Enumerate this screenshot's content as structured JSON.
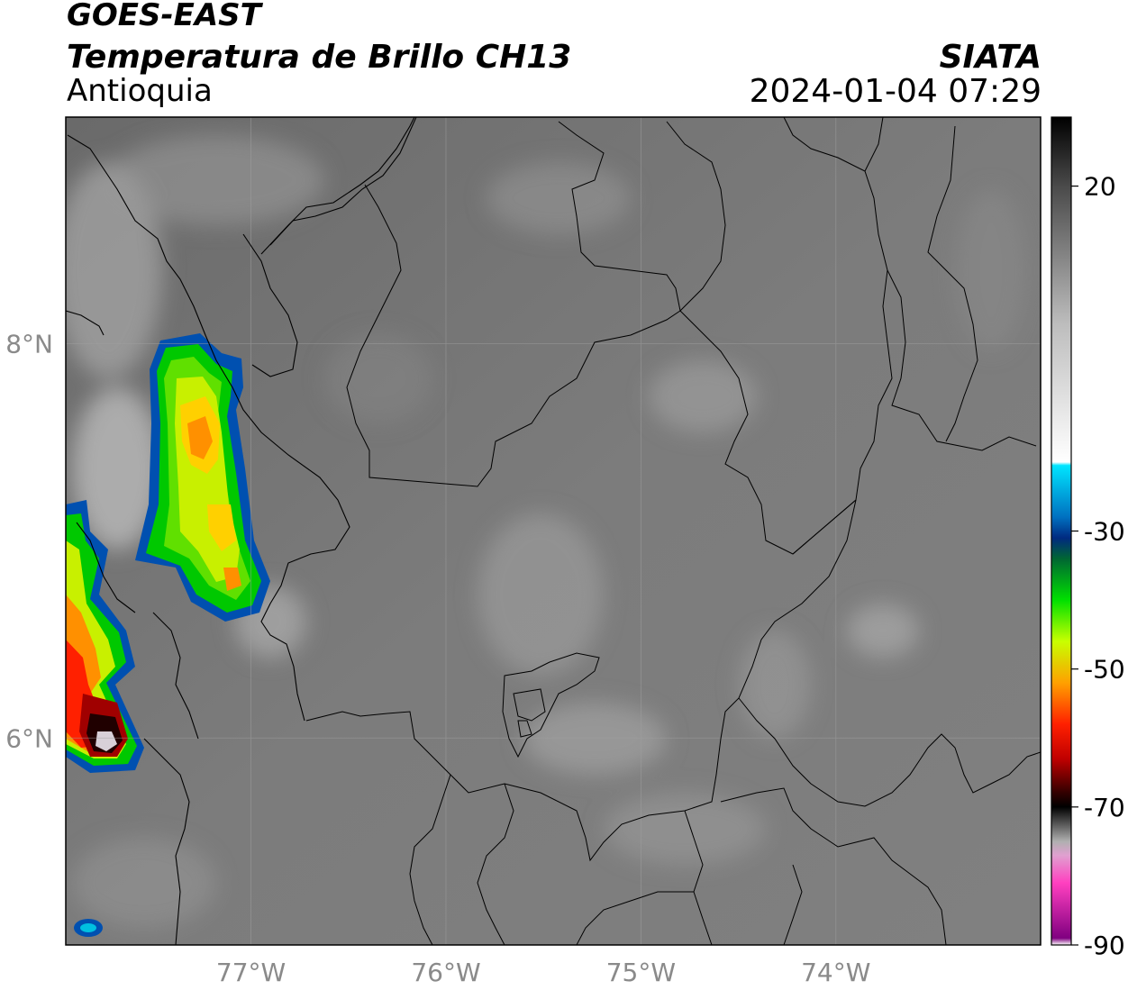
{
  "header": {
    "satellite": "GOES-EAST",
    "product": "Temperatura de Brillo CH13",
    "region": "Antioquia",
    "agency": "SIATA",
    "datetime": "2024-01-04 07:29"
  },
  "map": {
    "lon_range": [
      -77.95,
      -72.95
    ],
    "lat_range": [
      4.95,
      9.15
    ],
    "lon_ticks": [
      {
        "value": -77,
        "label": "77°W"
      },
      {
        "value": -76,
        "label": "76°W"
      },
      {
        "value": -75,
        "label": "75°W"
      },
      {
        "value": -74,
        "label": "74°W"
      }
    ],
    "lat_ticks": [
      {
        "value": 8,
        "label": "8°N"
      },
      {
        "value": 6,
        "label": "6°N"
      }
    ],
    "background": "grayscale brightness temperature",
    "colors": {
      "ocean_gray": "#6e6e6e",
      "land_gray": "#7f7f7f",
      "cloud_light": "#c8c8c8",
      "border": "#000000"
    }
  },
  "colorbar": {
    "min": -90,
    "max": 30,
    "ticks": [
      {
        "value": 20,
        "label": "20"
      },
      {
        "value": -30,
        "label": "-30"
      },
      {
        "value": -50,
        "label": "-50"
      },
      {
        "value": -70,
        "label": "-70"
      },
      {
        "value": -90,
        "label": "-90"
      }
    ],
    "stops": [
      {
        "value": 30,
        "color": "#000000"
      },
      {
        "value": 20,
        "color": "#4a4a4a"
      },
      {
        "value": 0,
        "color": "#bdbdbd"
      },
      {
        "value": -20,
        "color": "#ffffff"
      },
      {
        "value": -20.5,
        "color": "#00e5ff"
      },
      {
        "value": -28,
        "color": "#0070c0"
      },
      {
        "value": -31,
        "color": "#002a80"
      },
      {
        "value": -34,
        "color": "#006633"
      },
      {
        "value": -40,
        "color": "#00e000"
      },
      {
        "value": -46,
        "color": "#c8ff00"
      },
      {
        "value": -52,
        "color": "#ffa000"
      },
      {
        "value": -58,
        "color": "#ff2000"
      },
      {
        "value": -63,
        "color": "#c00000"
      },
      {
        "value": -68,
        "color": "#300000"
      },
      {
        "value": -70,
        "color": "#000000"
      },
      {
        "value": -75,
        "color": "#b0b0b0"
      },
      {
        "value": -77,
        "color": "#e0a0d0"
      },
      {
        "value": -81,
        "color": "#ff40c0"
      },
      {
        "value": -89,
        "color": "#800080"
      },
      {
        "value": -90,
        "color": "#ffffff"
      }
    ]
  }
}
